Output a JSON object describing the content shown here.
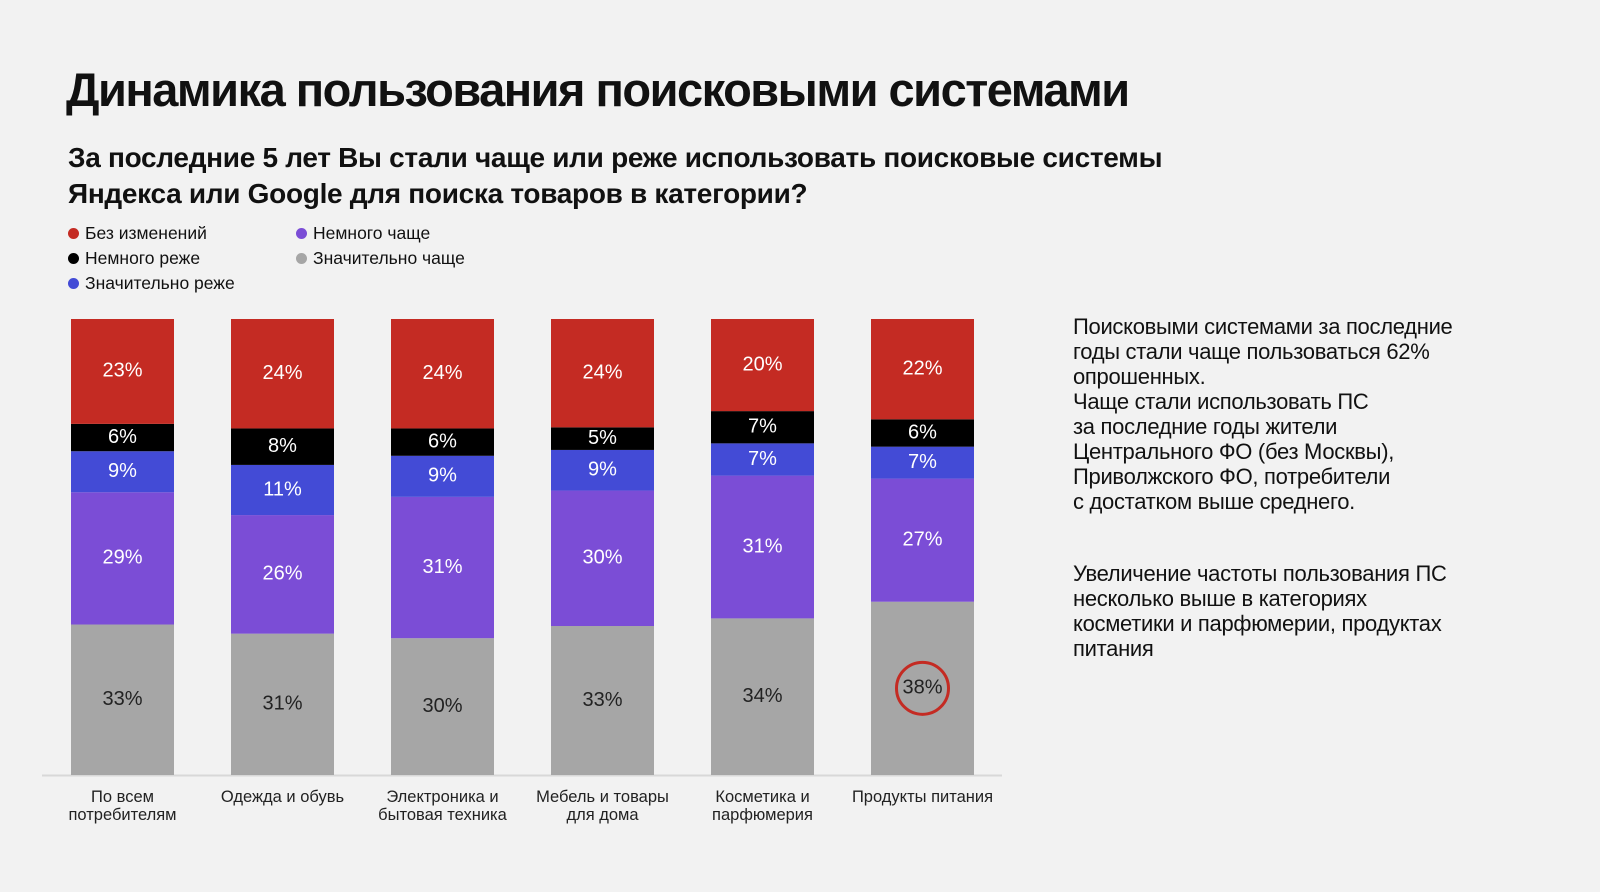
{
  "title": "Динамика пользования поисковыми системами",
  "subtitle": "За последние 5 лет Вы стали чаще или реже использовать поисковые системы Яндекса или Google для поиска товаров в категории?",
  "side_text": {
    "paragraph1": [
      "Поисковыми системами за последние",
      "годы стали чаще пользоваться 62%",
      "опрошенных.",
      "Чаще стали использовать ПС",
      "за последние годы жители",
      "Центрального ФО (без Москвы),",
      "Приволжского ФО, потребители",
      "с достатком выше среднего."
    ],
    "paragraph2": [
      "Увеличение частоты пользования ПС",
      "несколько выше в категориях",
      "косметики и парфюмерии, продуктах",
      "питания"
    ]
  },
  "chart_data": {
    "type": "bar",
    "stacked": true,
    "title": "",
    "xlabel": "",
    "ylabel": "",
    "ylim": [
      0,
      100
    ],
    "grid": false,
    "legend_placement": "top-left",
    "categories": [
      [
        "По всем",
        "потребителям"
      ],
      [
        "Одежда и обувь"
      ],
      [
        "Электроника и",
        "бытовая техника"
      ],
      [
        "Мебель и товары",
        "для дома"
      ],
      [
        "Косметика и",
        "парфюмерия"
      ],
      [
        "Продукты питания"
      ]
    ],
    "series": [
      {
        "name": "Значительно чаще",
        "color": "#a6a6a6",
        "label_color": "#222222",
        "values": [
          33,
          31,
          30,
          33,
          34,
          38
        ]
      },
      {
        "name": "Немного чаще",
        "color": "#7b4dd6",
        "label_color": "#ffffff",
        "values": [
          29,
          26,
          31,
          30,
          31,
          27
        ]
      },
      {
        "name": "Значительно реже",
        "color": "#434bd6",
        "label_color": "#ffffff",
        "values": [
          9,
          11,
          9,
          9,
          7,
          7
        ]
      },
      {
        "name": "Немного реже",
        "color": "#000000",
        "label_color": "#ffffff",
        "values": [
          6,
          8,
          6,
          5,
          7,
          6
        ]
      },
      {
        "name": "Без изменений",
        "color": "#c42b23",
        "label_color": "#ffffff",
        "values": [
          23,
          24,
          24,
          24,
          20,
          22
        ]
      }
    ],
    "legend_order": [
      "Без изменений",
      "Немного чаще",
      "Немного реже",
      "Значительно чаще",
      "Значительно реже"
    ],
    "annotations": [
      {
        "type": "circle",
        "series": "Значительно чаще",
        "category_index": 5,
        "color": "#c42b23"
      }
    ]
  }
}
